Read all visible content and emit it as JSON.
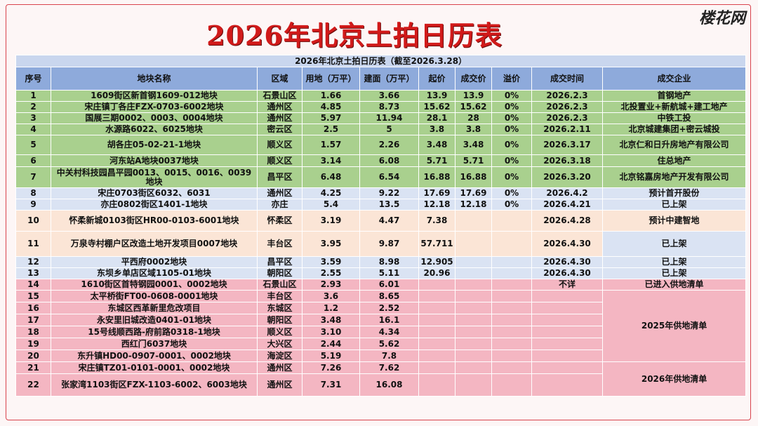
{
  "brand": "楼花网",
  "title": "2026年北京土拍日历表",
  "table": {
    "caption": "2026年北京土拍日历表（截至2026.3.28）",
    "headers": [
      "序号",
      "地块名称",
      "区域",
      "用地（万平）",
      "建面（万平）",
      "起价",
      "成交价",
      "溢价",
      "成交时间",
      "成交企业"
    ],
    "rows": [
      [
        "1",
        "1609街区新首钢1609-012地块",
        "石景山区",
        "1.66",
        "3.66",
        "13.9",
        "13.9",
        "0%",
        "2026.2.3",
        "首钢地产"
      ],
      [
        "2",
        "宋庄镇丁各庄FZX-0703-6002地块",
        "通州区",
        "4.85",
        "8.73",
        "15.62",
        "15.62",
        "0%",
        "2026.2.3",
        "北投置业+新航城+建工地产"
      ],
      [
        "3",
        "国展三期0002、0003、0004地块",
        "通州区",
        "5.97",
        "11.94",
        "28.1",
        "28",
        "0%",
        "2026.2.3",
        "中铁工投"
      ],
      [
        "4",
        "水源路6022、6025地块",
        "密云区",
        "2.5",
        "5",
        "3.8",
        "3.8",
        "0%",
        "2026.2.11",
        "北京城建集团+密云城投"
      ],
      [
        "5",
        "胡各庄05-02-21-1地块",
        "顺义区",
        "1.57",
        "2.26",
        "3.48",
        "3.48",
        "0%",
        "2026.3.17",
        "北京仁和日升房地产有限公司"
      ],
      [
        "6",
        "河东站A地块0037地块",
        "顺义区",
        "3.14",
        "6.08",
        "5.71",
        "5.71",
        "0%",
        "2026.3.18",
        "住总地产"
      ],
      [
        "7",
        "中关村科技园昌平园0013、0015、0016、0039地块",
        "昌平区",
        "6.48",
        "6.54",
        "16.88",
        "16.88",
        "0%",
        "2026.3.20",
        "北京铭嘉房地产开发有限公司"
      ],
      [
        "8",
        "宋庄0703街区6032、6031",
        "通州区",
        "4.25",
        "9.22",
        "17.69",
        "17.69",
        "0%",
        "2026.4.2",
        "预计首开股份"
      ],
      [
        "9",
        "亦庄0802街区1401-1地块",
        "亦庄",
        "5.4",
        "13.5",
        "12.18",
        "12.18",
        "0%",
        "2026.4.21",
        "已上架"
      ],
      [
        "10",
        "怀柔新城0103街区HR00-0103-6001地块",
        "怀柔区",
        "3.19",
        "4.47",
        "7.38",
        null,
        null,
        "2026.4.28",
        "预计中建智地"
      ],
      [
        "11",
        "万泉寺村棚户区改造土地开发项目0007地块",
        "丰台区",
        "3.95",
        "9.87",
        "57.711",
        null,
        null,
        "2026.4.30",
        "已上架"
      ],
      [
        "12",
        "平西府0002地块",
        "昌平区",
        "3.59",
        "8.98",
        "12.905",
        null,
        null,
        "2026.4.30",
        "已上架"
      ],
      [
        "13",
        "东坝乡单店区域1105-01地块",
        "朝阳区",
        "2.55",
        "5.11",
        "20.96",
        null,
        null,
        "2026.4.30",
        "已上架"
      ],
      [
        "14",
        "1610街区首特钢园0001、0002地块",
        "石景山区",
        "2.93",
        "6.01",
        null,
        null,
        null,
        "不详",
        "已进入供地清单"
      ],
      [
        "15",
        "太平桥街FT00-0608-0001地块",
        "丰台区",
        "3.6",
        "8.65",
        null,
        null,
        null,
        null,
        "2025年供地清单"
      ],
      [
        "16",
        "东城区西革新里危改项目",
        "东城区",
        "1.2",
        "2.52",
        null,
        null,
        null,
        null,
        null
      ],
      [
        "17",
        "永安里旧城改造0401-01地块",
        "朝阳区",
        "3.48",
        "16.1",
        null,
        null,
        null,
        null,
        null
      ],
      [
        "18",
        "15号线顺西路-府前路0318-1地块",
        "顺义区",
        "3.10",
        "4.34",
        null,
        null,
        null,
        null,
        null
      ],
      [
        "19",
        "西红门6037地块",
        "大兴区",
        "2.44",
        "5.62",
        null,
        null,
        null,
        null,
        null
      ],
      [
        "20",
        "东升镇HD00-0907-0001、0002地块",
        "海淀区",
        "5.19",
        "7.8",
        null,
        null,
        null,
        null,
        null
      ],
      [
        "21",
        "宋庄镇TZ01-0101-0001、0002地块",
        "通州区",
        "7.26",
        "7.62",
        null,
        null,
        null,
        null,
        "2026年供地清单"
      ],
      [
        "22",
        "张家湾1103街区FZX-1103-6002、6003地块",
        "通州区",
        "7.31",
        "16.08",
        null,
        null,
        null,
        null,
        null
      ]
    ]
  }
}
